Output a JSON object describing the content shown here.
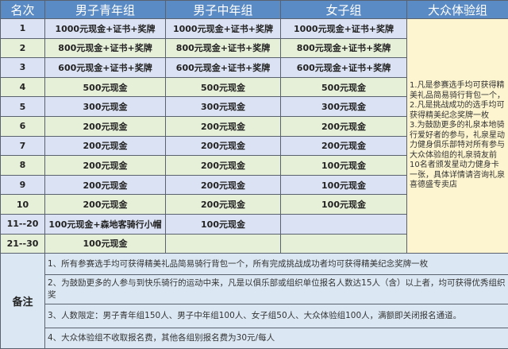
{
  "header": {
    "rank": "名次",
    "cols": [
      "男子青年组",
      "男子中年组",
      "女子组",
      "大众体验组"
    ]
  },
  "rows": [
    {
      "rank": "1",
      "cells": [
        "1000元现金+证书+奖牌",
        "1000元现金+证书+奖牌",
        "1000元现金+证书+奖牌"
      ]
    },
    {
      "rank": "2",
      "cells": [
        "800元现金+证书+奖牌",
        "800元现金+证书+奖牌",
        "800元现金+证书+奖牌"
      ]
    },
    {
      "rank": "3",
      "cells": [
        "600元现金+证书+奖牌",
        "600元现金+证书+奖牌",
        "600元现金+证书+奖牌"
      ]
    },
    {
      "rank": "4",
      "cells": [
        "500元现金",
        "500元现金",
        "500元现金"
      ]
    },
    {
      "rank": "5",
      "cells": [
        "300元现金",
        "300元现金",
        "300元现金"
      ]
    },
    {
      "rank": "6",
      "cells": [
        "200元现金",
        "200元现金",
        "200元现金"
      ]
    },
    {
      "rank": "7",
      "cells": [
        "200元现金",
        "200元现金",
        "200元现金"
      ]
    },
    {
      "rank": "8",
      "cells": [
        "200元现金",
        "200元现金",
        "100元现金"
      ]
    },
    {
      "rank": "9",
      "cells": [
        "200元现金",
        "200元现金",
        "100元现金"
      ]
    },
    {
      "rank": "10",
      "cells": [
        "200元现金",
        "200元现金",
        "100元现金"
      ]
    },
    {
      "rank": "11--20",
      "cells": [
        "100元现金+森地客骑行小帽",
        "100元现金",
        ""
      ]
    },
    {
      "rank": "21--30",
      "cells": [
        "100元现金",
        "",
        ""
      ]
    }
  ],
  "public_group_text": "1.凡是参赛选手均可获得精美礼品简易骑行背包一个，\n2.凡是挑战成功的选手均可获得精美纪念奖牌一枚\n3.为鼓励更多的礼泉本地骑行爱好者的参与，礼泉星动力健身俱乐部特对所有参与大众体验组的礼泉骑友前10名者颁发星动力健身卡一张，具体详情请咨询礼泉喜德盛专卖店",
  "notes": {
    "label": "备注",
    "items": [
      "1、所有参赛选手均可获得精美礼品简易骑行背包一个，所有完成挑战成功者均可获得精美纪念奖牌一枚",
      "2、为鼓励更多的人参与到快乐骑行的运动中来，凡是以俱乐部或组织单位报名人数达15人（含）以上者，均可获得优秀组织奖",
      "3、人数限定：男子青年组150人、男子中年组100人、女子组50人、大众体验组100人，满额即关闭报名通道。",
      "4、大众体验组不收取报名费，其他各组别报名费为30元/每人"
    ]
  }
}
